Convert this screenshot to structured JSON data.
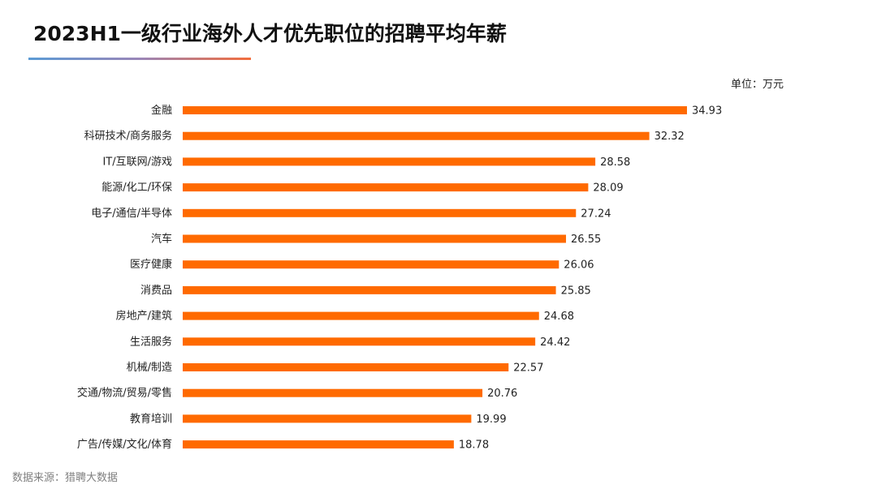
{
  "title": "2023H1一级行业海外人才优先职位的招聘平均年薪",
  "unit_label": "单位：万元",
  "source": "数据来源：猎聘大数据",
  "colors": {
    "bar": "#ff6a00",
    "accent_blue": "#5b9bd5",
    "accent_orange": "#f36d3c"
  },
  "chart_data": {
    "type": "bar",
    "orientation": "horizontal",
    "title": "2023H1一级行业海外人才优先职位的招聘平均年薪",
    "categories": [
      "金融",
      "科研技术/商务服务",
      "IT/互联网/游戏",
      "能源/化工/环保",
      "电子/通信/半导体",
      "汽车",
      "医疗健康",
      "消费品",
      "房地产/建筑",
      "生活服务",
      "机械/制造",
      "交通/物流/贸易/零售",
      "教育培训",
      "广告/传媒/文化/体育"
    ],
    "values": [
      34.93,
      32.32,
      28.58,
      28.09,
      27.24,
      26.55,
      26.06,
      25.85,
      24.68,
      24.42,
      22.57,
      20.76,
      19.99,
      18.78
    ],
    "value_labels": [
      "34.93",
      "32.32",
      "28.58",
      "28.09",
      "27.24",
      "26.55",
      "26.06",
      "25.85",
      "24.68",
      "24.42",
      "22.57",
      "20.76",
      "19.99",
      "18.78"
    ],
    "xlim": [
      0,
      34.93
    ],
    "grid": false,
    "legend": "none"
  }
}
